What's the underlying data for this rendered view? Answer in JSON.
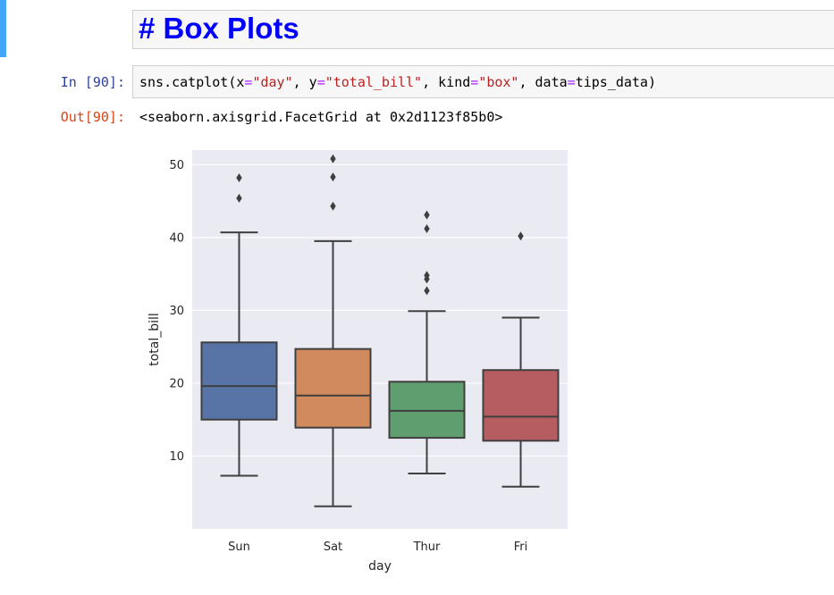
{
  "markdown_cell": {
    "text": "# Box Plots"
  },
  "code_cell": {
    "in_prompt": "In [90]:",
    "out_prompt": "Out[90]:",
    "code_tokens": [
      {
        "t": "sns.catplot(x",
        "c": "plain"
      },
      {
        "t": "=",
        "c": "op"
      },
      {
        "t": "\"day\"",
        "c": "str"
      },
      {
        "t": ", y",
        "c": "plain"
      },
      {
        "t": "=",
        "c": "op"
      },
      {
        "t": "\"total_bill\"",
        "c": "str"
      },
      {
        "t": ", kind",
        "c": "plain"
      },
      {
        "t": "=",
        "c": "op"
      },
      {
        "t": "\"box\"",
        "c": "str"
      },
      {
        "t": ", data",
        "c": "plain"
      },
      {
        "t": "=",
        "c": "op"
      },
      {
        "t": "tips_data)",
        "c": "plain"
      }
    ],
    "output_text": "<seaborn.axisgrid.FacetGrid at 0x2d1123f85b0>"
  },
  "chart_data": {
    "type": "box",
    "xlabel": "day",
    "ylabel": "total_bill",
    "categories": [
      "Sun",
      "Sat",
      "Thur",
      "Fri"
    ],
    "ylim": [
      0,
      52
    ],
    "yticks": [
      10,
      20,
      30,
      40,
      50
    ],
    "grid": true,
    "background": "#eaeaf2",
    "boxes": [
      {
        "category": "Sun",
        "whisker_low": 7.3,
        "q1": 15.0,
        "median": 19.6,
        "q3": 25.6,
        "whisker_high": 40.7,
        "outliers": [
          45.4,
          48.2
        ],
        "color": "#5874a6"
      },
      {
        "category": "Sat",
        "whisker_low": 3.1,
        "q1": 13.9,
        "median": 18.3,
        "q3": 24.7,
        "whisker_high": 39.5,
        "outliers": [
          44.3,
          48.3,
          50.8
        ],
        "color": "#d08a5e"
      },
      {
        "category": "Thur",
        "whisker_low": 7.6,
        "q1": 12.5,
        "median": 16.2,
        "q3": 20.2,
        "whisker_high": 29.9,
        "outliers": [
          32.7,
          34.3,
          34.8,
          41.2,
          43.1
        ],
        "color": "#5f9e6e"
      },
      {
        "category": "Fri",
        "whisker_low": 5.8,
        "q1": 12.1,
        "median": 15.4,
        "q3": 21.8,
        "whisker_high": 29.0,
        "outliers": [
          40.2
        ],
        "color": "#b55d60"
      }
    ]
  }
}
